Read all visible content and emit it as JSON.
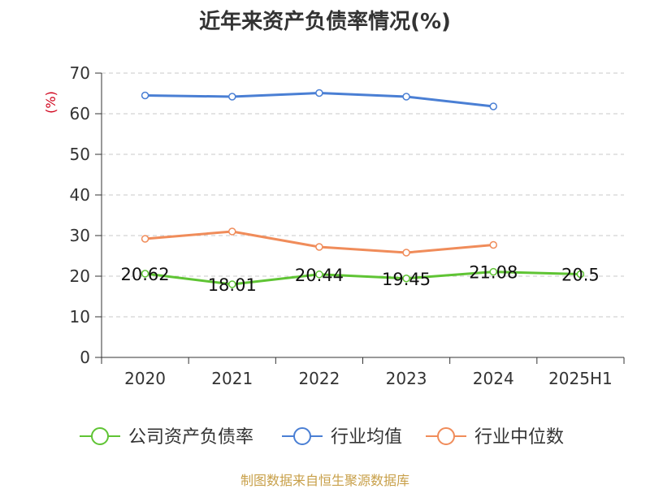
{
  "chart_data": {
    "type": "line",
    "title": "近年来资产负债率情况(%)",
    "ylabel": "(%)",
    "ylim": [
      0,
      70
    ],
    "yticks": [
      0,
      10,
      20,
      30,
      40,
      50,
      60,
      70
    ],
    "grid": true,
    "legend_position": "bottom",
    "categories": [
      "2020",
      "2021",
      "2022",
      "2023",
      "2024",
      "2025H1"
    ],
    "series": [
      {
        "name": "公司资产负债率",
        "color": "#5fc434",
        "values": [
          20.62,
          18.01,
          20.44,
          19.45,
          21.08,
          20.5
        ],
        "labels": [
          "20.62",
          "18.01",
          "20.44",
          "19.45",
          "21.08",
          "20.5"
        ]
      },
      {
        "name": "行业均值",
        "color": "#4a7fd4",
        "values": [
          64.5,
          64.2,
          65.1,
          64.2,
          61.8,
          null
        ]
      },
      {
        "name": "行业中位数",
        "color": "#f08c5a",
        "values": [
          29.2,
          31.0,
          27.2,
          25.8,
          27.7,
          null
        ]
      }
    ]
  },
  "source": "制图数据来自恒生聚源数据库"
}
